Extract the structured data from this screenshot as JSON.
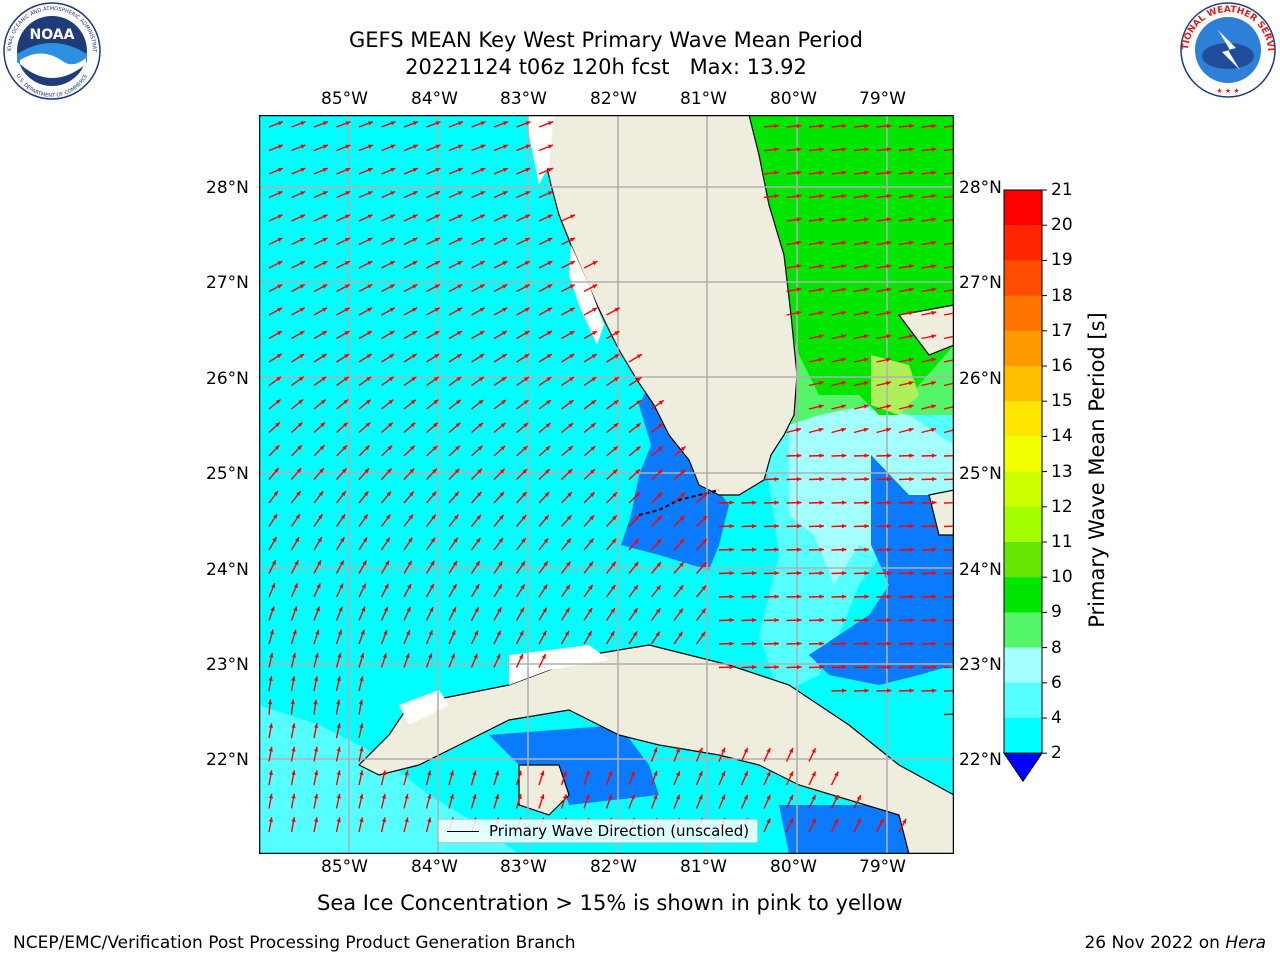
{
  "title": {
    "line1": "GEFS MEAN Key West Primary Wave Mean Period",
    "line2": "20221124 t06z 120h fcst   Max: 13.92"
  },
  "map": {
    "lon_ticks": [
      "85°W",
      "84°W",
      "83°W",
      "82°W",
      "81°W",
      "80°W",
      "79°W"
    ],
    "lat_ticks": [
      "28°N",
      "27°N",
      "26°N",
      "25°N",
      "24°N",
      "23°N",
      "22°N"
    ],
    "legend_label": "Primary Wave Direction (unscaled)",
    "colors": {
      "land": "#efedde",
      "period_2_4": "#0a7aff",
      "period_4_6": "#00ffff",
      "period_6_8": "#55ffff",
      "period_8_9": "#a4ffff",
      "period_9_10": "#55f56a",
      "period_10_11": "#00e600",
      "arrow": "#ff0000",
      "grid": "#b0b0b0"
    }
  },
  "colorbar": {
    "label": "Primary Wave Mean Period [s]",
    "ticks": [
      "21",
      "20",
      "19",
      "18",
      "17",
      "16",
      "15",
      "14",
      "13",
      "12",
      "11",
      "10",
      "9",
      "8",
      "6",
      "4",
      "2"
    ],
    "colors": [
      "#ff0000",
      "#ff2600",
      "#ff4d00",
      "#ff7300",
      "#ff9900",
      "#ffbf00",
      "#ffe600",
      "#f2ff00",
      "#ccff00",
      "#a6ff00",
      "#66e600",
      "#00e600",
      "#55f56a",
      "#a4ffff",
      "#55ffff",
      "#00ffff",
      "#0a7aff"
    ],
    "extend_color": "#0000ff"
  },
  "caption": "Sea Ice Concentration > 15% is shown in pink to yellow",
  "footer": {
    "left": "NCEP/EMC/Verification Post Processing Product Generation Branch",
    "right_prefix": "26 Nov 2022 on ",
    "right_machine": "Hera"
  },
  "logos": {
    "noaa_text": "NOAA",
    "noaa_ring_top": "NATIONAL OCEANIC AND ATMOSPHERIC ADMINISTRATION",
    "noaa_ring_bottom": "U.S. DEPARTMENT OF COMMERCE",
    "nws_ring_top": "NATIONAL WEATHER SERVICE"
  }
}
